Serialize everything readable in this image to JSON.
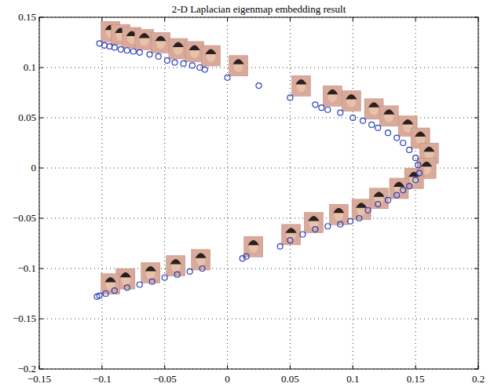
{
  "chart_data": {
    "type": "scatter",
    "title": "2-D Laplacian eigenmap embedding result",
    "x": [
      -0.102,
      -0.098,
      -0.094,
      -0.09,
      -0.085,
      -0.08,
      -0.075,
      -0.07,
      -0.062,
      -0.055,
      -0.048,
      -0.042,
      -0.035,
      -0.028,
      -0.022,
      -0.018,
      0,
      0.025,
      0.05,
      0.07,
      0.075,
      0.08,
      0.09,
      0.1,
      0.108,
      0.115,
      0.12,
      0.128,
      0.135,
      0.14,
      0.145,
      0.15,
      0.152,
      0.153,
      0.15,
      0.145,
      0.14,
      0.135,
      0.128,
      0.12,
      0.112,
      0.105,
      0.098,
      0.09,
      0.08,
      0.07,
      0.06,
      0.05,
      0.042,
      0.015,
      0.012,
      -0.02,
      -0.03,
      -0.04,
      -0.05,
      -0.06,
      -0.07,
      -0.08,
      -0.09,
      -0.097,
      -0.102,
      -0.104
    ],
    "values": [
      0.124,
      0.122,
      0.121,
      0.12,
      0.118,
      0.117,
      0.116,
      0.115,
      0.113,
      0.111,
      0.107,
      0.105,
      0.104,
      0.102,
      0.1,
      0.098,
      0.09,
      0.082,
      0.07,
      0.063,
      0.06,
      0.058,
      0.055,
      0.05,
      0.047,
      0.043,
      0.04,
      0.035,
      0.03,
      0.025,
      0.018,
      0.01,
      0.003,
      -0.005,
      -0.012,
      -0.018,
      -0.022,
      -0.027,
      -0.032,
      -0.036,
      -0.042,
      -0.05,
      -0.053,
      -0.056,
      -0.058,
      -0.061,
      -0.066,
      -0.072,
      -0.078,
      -0.088,
      -0.09,
      -0.1,
      -0.103,
      -0.106,
      -0.109,
      -0.113,
      -0.116,
      -0.119,
      -0.122,
      -0.125,
      -0.127,
      -0.128
    ],
    "color": "#2b3fbf",
    "marker": "circle",
    "xlim": [
      -0.15,
      0.2
    ],
    "ylim": [
      -0.2,
      0.15
    ],
    "xticks": [
      {
        "value": -0.15,
        "label": "−0.15"
      },
      {
        "value": -0.1,
        "label": "−0.1"
      },
      {
        "value": -0.05,
        "label": "−0.05"
      },
      0,
      0.05,
      0.1,
      0.15,
      0.2
    ],
    "yticks": [
      {
        "value": -0.2,
        "label": "−0.2"
      },
      {
        "value": -0.15,
        "label": "−0.15"
      },
      {
        "value": -0.1,
        "label": "−0.1"
      },
      {
        "value": -0.05,
        "label": "−0.05"
      },
      0,
      0.05,
      0.1,
      0.15
    ],
    "grid": true
  }
}
